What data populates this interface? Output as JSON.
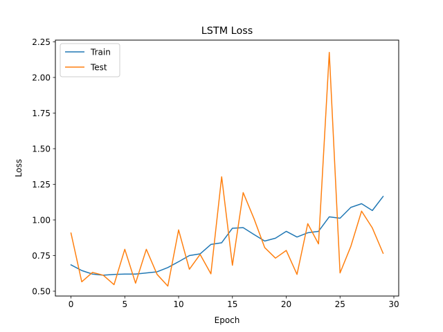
{
  "chart_data": {
    "type": "line",
    "title": "LSTM Loss",
    "xlabel": "Epoch",
    "ylabel": "Loss",
    "xlim": [
      -1.45,
      30.45
    ],
    "ylim": [
      0.466,
      2.262
    ],
    "xticks": [
      0,
      5,
      10,
      15,
      20,
      25,
      30
    ],
    "yticks": [
      0.5,
      0.75,
      1.0,
      1.25,
      1.5,
      1.75,
      2.0,
      2.25
    ],
    "xtick_labels": [
      "0",
      "5",
      "10",
      "15",
      "20",
      "25",
      "30"
    ],
    "ytick_labels": [
      "0.50",
      "0.75",
      "1.00",
      "1.25",
      "1.50",
      "1.75",
      "2.00",
      "2.25"
    ],
    "grid": false,
    "legend_position": "top-left",
    "x": [
      0,
      1,
      2,
      3,
      4,
      5,
      6,
      7,
      8,
      9,
      10,
      11,
      12,
      13,
      14,
      15,
      16,
      17,
      18,
      19,
      20,
      21,
      22,
      23,
      24,
      25,
      26,
      27,
      28,
      29
    ],
    "series": [
      {
        "name": "Train",
        "color": "#1f77b4",
        "values": [
          0.685,
          0.645,
          0.62,
          0.612,
          0.618,
          0.62,
          0.62,
          0.628,
          0.636,
          0.666,
          0.707,
          0.75,
          0.762,
          0.828,
          0.84,
          0.942,
          0.946,
          0.898,
          0.852,
          0.872,
          0.92,
          0.88,
          0.91,
          0.92,
          1.022,
          1.012,
          1.088,
          1.114,
          1.066,
          1.165
        ]
      },
      {
        "name": "Test",
        "color": "#ff7f0e",
        "values": [
          0.908,
          0.566,
          0.632,
          0.612,
          0.546,
          0.794,
          0.556,
          0.794,
          0.618,
          0.536,
          0.93,
          0.654,
          0.758,
          0.622,
          1.303,
          0.682,
          1.192,
          1.01,
          0.806,
          0.732,
          0.786,
          0.618,
          0.974,
          0.832,
          2.176,
          0.628,
          0.814,
          1.062,
          0.944,
          0.766
        ]
      }
    ]
  }
}
